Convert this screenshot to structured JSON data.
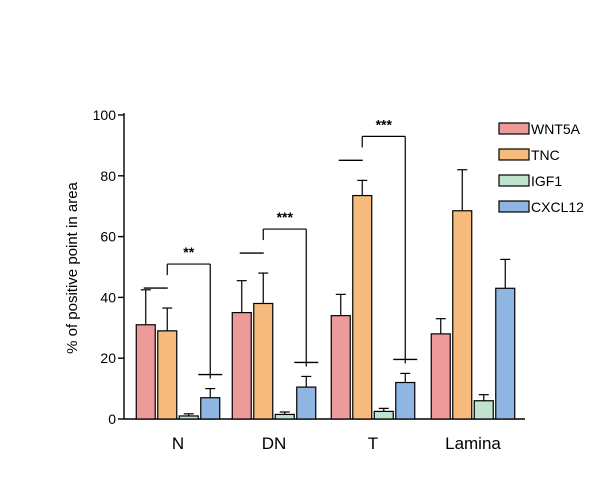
{
  "chart_data": {
    "type": "bar",
    "categories": [
      "N",
      "DN",
      "T",
      "Lamina"
    ],
    "series": [
      {
        "name": "WNT5A",
        "color": "#ef9a9a",
        "values": [
          31,
          35,
          34,
          28
        ],
        "errors": [
          11.5,
          10.5,
          7,
          5
        ]
      },
      {
        "name": "TNC",
        "color": "#f6bb7d",
        "values": [
          29,
          38,
          73.5,
          68.5
        ],
        "errors": [
          7.5,
          10,
          5,
          13.5
        ]
      },
      {
        "name": "IGF1",
        "color": "#bfe3cc",
        "values": [
          1,
          1.5,
          2.5,
          6
        ],
        "errors": [
          0.7,
          0.8,
          1,
          2
        ]
      },
      {
        "name": "CXCL12",
        "color": "#8fb5e3",
        "values": [
          7,
          10.5,
          12,
          43
        ],
        "errors": [
          3,
          3.5,
          3,
          9.5
        ]
      }
    ],
    "ylabel": "% of positive point in area",
    "ylim": [
      0,
      100
    ],
    "yticks": [
      0,
      20,
      40,
      60,
      80,
      100
    ],
    "legend_position": "top-right",
    "significance": [
      {
        "category": "N",
        "label": "**"
      },
      {
        "category": "DN",
        "label": "***"
      },
      {
        "category": "T",
        "label": "***"
      }
    ]
  }
}
